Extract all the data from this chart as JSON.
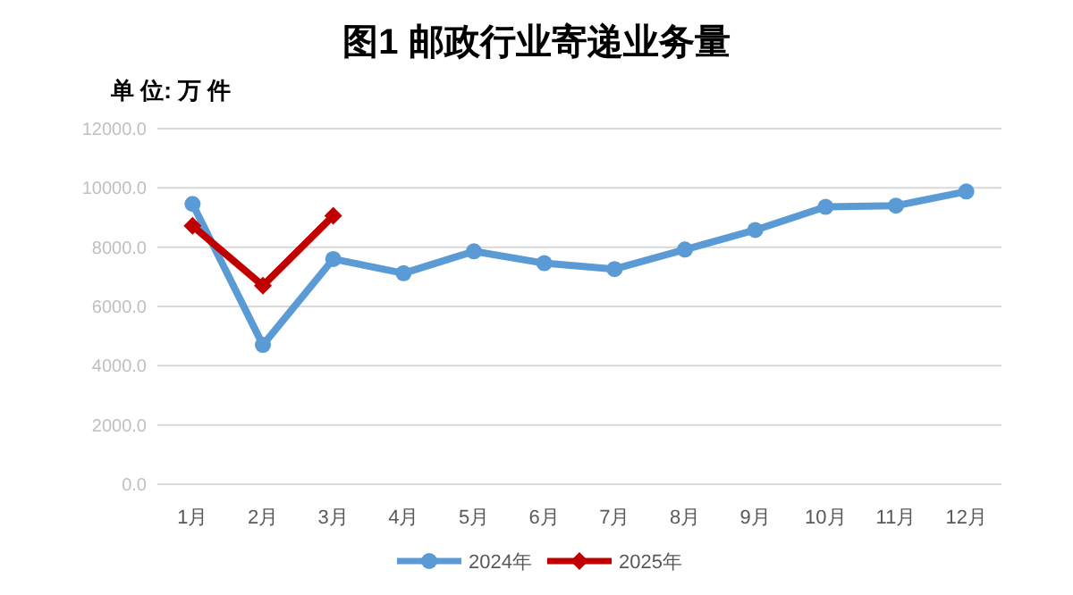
{
  "chart_data": {
    "type": "line",
    "title": "图1  邮政行业寄递业务量",
    "ylabel": "单 位: 万 件",
    "categories": [
      "1月",
      "2月",
      "3月",
      "4月",
      "5月",
      "6月",
      "7月",
      "8月",
      "9月",
      "10月",
      "11月",
      "12月"
    ],
    "series": [
      {
        "name": "2024年",
        "color": "#5b9bd5",
        "marker": "circle",
        "values": [
          9460,
          4700,
          7600,
          7120,
          7860,
          7460,
          7260,
          7920,
          8580,
          9360,
          9400,
          9880
        ]
      },
      {
        "name": "2025年",
        "color": "#c00000",
        "marker": "diamond",
        "values": [
          8720,
          6700,
          9060,
          null,
          null,
          null,
          null,
          null,
          null,
          null,
          null,
          null
        ]
      }
    ],
    "ylim": [
      0,
      12000
    ],
    "yticks": [
      {
        "value": 0,
        "label": "0.0"
      },
      {
        "value": 2000,
        "label": "2000.0"
      },
      {
        "value": 4000,
        "label": "4000.0"
      },
      {
        "value": 6000,
        "label": "6000.0"
      },
      {
        "value": 8000,
        "label": "8000.0"
      },
      {
        "value": 10000,
        "label": "10000.0"
      },
      {
        "value": 12000,
        "label": "12000.0"
      }
    ],
    "grid": "y",
    "legend": "bottom",
    "line_style": "solid"
  }
}
